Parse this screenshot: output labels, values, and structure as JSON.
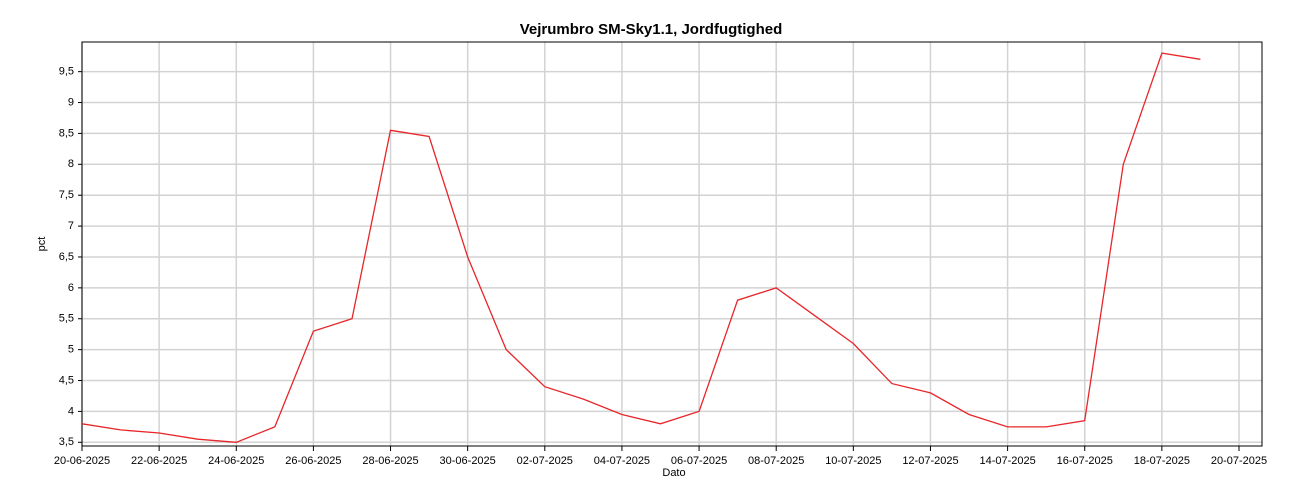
{
  "chart_data": {
    "type": "line",
    "title": "Vejrumbro SM-Sky1.1, Jordfugtighed",
    "x_label": "Dato",
    "y_label": "pct",
    "x": [
      "20-06-2025",
      "21-06-2025",
      "22-06-2025",
      "23-06-2025",
      "24-06-2025",
      "25-06-2025",
      "26-06-2025",
      "27-06-2025",
      "28-06-2025",
      "29-06-2025",
      "30-06-2025",
      "01-07-2025",
      "02-07-2025",
      "03-07-2025",
      "04-07-2025",
      "05-07-2025",
      "06-07-2025",
      "07-07-2025",
      "08-07-2025",
      "09-07-2025",
      "10-07-2025",
      "11-07-2025",
      "12-07-2025",
      "13-07-2025",
      "14-07-2025",
      "15-07-2025",
      "16-07-2025",
      "17-07-2025",
      "18-07-2025",
      "19-07-2025"
    ],
    "series": [
      {
        "name": "Jordfugtighed",
        "color": "#e8262a",
        "values": [
          3.8,
          3.7,
          3.65,
          3.55,
          3.5,
          3.75,
          5.3,
          5.5,
          8.55,
          8.45,
          6.5,
          5.0,
          4.4,
          4.2,
          3.95,
          3.8,
          4.0,
          5.8,
          6.0,
          5.55,
          5.1,
          4.45,
          4.3,
          3.95,
          3.75,
          3.75,
          3.85,
          8.0,
          9.8,
          9.7
        ]
      }
    ],
    "xlim": [
      "20-06-2025",
      "20-07-2025"
    ],
    "xticks": [
      "20-06-2025",
      "22-06-2025",
      "24-06-2025",
      "26-06-2025",
      "28-06-2025",
      "30-06-2025",
      "02-07-2025",
      "04-07-2025",
      "06-07-2025",
      "08-07-2025",
      "10-07-2025",
      "12-07-2025",
      "14-07-2025",
      "16-07-2025",
      "18-07-2025",
      "20-07-2025"
    ],
    "ylim": [
      3.44,
      9.98
    ],
    "yticks": [
      {
        "value": 3.5,
        "label": "3,5"
      },
      4,
      {
        "value": 4.5,
        "label": "4,5"
      },
      5,
      {
        "value": 5.5,
        "label": "5,5"
      },
      6,
      {
        "value": 6.5,
        "label": "6,5"
      },
      7,
      {
        "value": 7.5,
        "label": "7,5"
      },
      8,
      {
        "value": 8.5,
        "label": "8,5"
      },
      9,
      {
        "value": 9.5,
        "label": "9,5"
      }
    ],
    "grid": true
  }
}
